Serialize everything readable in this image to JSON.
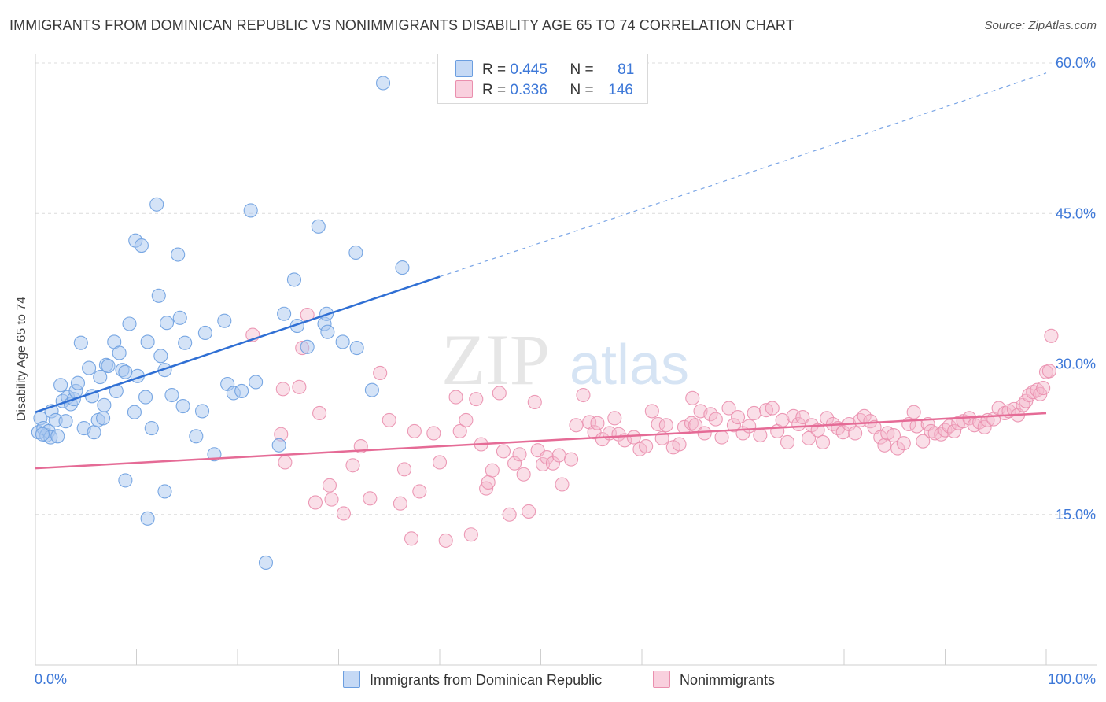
{
  "title": "IMMIGRANTS FROM DOMINICAN REPUBLIC VS NONIMMIGRANTS DISABILITY AGE 65 TO 74 CORRELATION CHART",
  "source": "Source: ZipAtlas.com",
  "watermark": {
    "zip": "ZIP",
    "atlas": "atlas"
  },
  "legend_top": {
    "rows": [
      {
        "r_label": "R =",
        "r_value": "0.445",
        "n_label": "N =",
        "n_value": "81"
      },
      {
        "r_label": "R =",
        "r_value": "0.336",
        "n_label": "N =",
        "n_value": "146"
      }
    ]
  },
  "colors": {
    "blue_fill": "#a9c8f0",
    "blue_stroke": "#6b9ee0",
    "blue_line": "#2f6fd4",
    "pink_fill": "#f4b7cb",
    "pink_stroke": "#ea8fae",
    "pink_line": "#e56b96",
    "tick_label": "#3d78d8",
    "grid": "#dcdcdc"
  },
  "chart_data": {
    "type": "scatter",
    "title": "IMMIGRANTS FROM DOMINICAN REPUBLIC VS NONIMMIGRANTS DISABILITY AGE 65 TO 74 CORRELATION CHART",
    "xlabel": "",
    "ylabel": "Disability Age 65 to 74",
    "xlim": [
      0,
      100
    ],
    "ylim": [
      0,
      63
    ],
    "x_tick_labels": [
      "0.0%",
      "100.0%"
    ],
    "y_ticks": [
      15,
      30,
      45,
      60
    ],
    "y_tick_labels": [
      "15.0%",
      "30.0%",
      "45.0%",
      "60.0%"
    ],
    "grid": true,
    "legend_position": "bottom",
    "series": [
      {
        "name": "Immigrants from Dominican Republic",
        "r": 0.445,
        "n": 81,
        "trend": {
          "x0": 0,
          "y0": 25.2,
          "x1": 40,
          "y1": 38.7,
          "dashed_to_x": 100,
          "dashed_to_y": 59.0
        },
        "points": [
          [
            0.3,
            23.2
          ],
          [
            0.5,
            24.6
          ],
          [
            0.8,
            23.6
          ],
          [
            1.1,
            22.9
          ],
          [
            1.3,
            23.3
          ],
          [
            1.5,
            22.7
          ],
          [
            1.6,
            25.3
          ],
          [
            2.0,
            24.4
          ],
          [
            2.2,
            22.8
          ],
          [
            2.5,
            27.9
          ],
          [
            2.7,
            26.3
          ],
          [
            3.0,
            24.3
          ],
          [
            3.2,
            26.7
          ],
          [
            3.5,
            26.0
          ],
          [
            3.8,
            26.5
          ],
          [
            4.0,
            27.3
          ],
          [
            4.2,
            28.1
          ],
          [
            4.5,
            32.1
          ],
          [
            4.8,
            23.6
          ],
          [
            5.3,
            29.6
          ],
          [
            5.6,
            26.8
          ],
          [
            5.8,
            23.2
          ],
          [
            6.2,
            24.4
          ],
          [
            6.4,
            28.7
          ],
          [
            6.7,
            24.6
          ],
          [
            6.8,
            25.9
          ],
          [
            7.0,
            29.9
          ],
          [
            7.2,
            29.8
          ],
          [
            7.8,
            32.2
          ],
          [
            8.0,
            27.3
          ],
          [
            8.3,
            31.1
          ],
          [
            8.6,
            29.4
          ],
          [
            8.9,
            29.2
          ],
          [
            9.3,
            34.0
          ],
          [
            9.8,
            25.2
          ],
          [
            9.9,
            42.3
          ],
          [
            10.1,
            28.8
          ],
          [
            10.5,
            41.8
          ],
          [
            10.9,
            26.7
          ],
          [
            11.1,
            32.2
          ],
          [
            11.5,
            23.6
          ],
          [
            12.0,
            45.9
          ],
          [
            12.2,
            36.8
          ],
          [
            12.4,
            30.8
          ],
          [
            12.8,
            29.4
          ],
          [
            13.0,
            34.1
          ],
          [
            13.5,
            26.9
          ],
          [
            14.1,
            40.9
          ],
          [
            14.3,
            34.6
          ],
          [
            14.8,
            32.1
          ],
          [
            14.6,
            25.8
          ],
          [
            15.9,
            22.8
          ],
          [
            16.5,
            25.3
          ],
          [
            16.8,
            33.1
          ],
          [
            17.7,
            21.0
          ],
          [
            18.7,
            34.3
          ],
          [
            19.0,
            28.0
          ],
          [
            19.6,
            27.1
          ],
          [
            20.4,
            27.3
          ],
          [
            21.3,
            45.3
          ],
          [
            21.8,
            28.2
          ],
          [
            22.8,
            10.2
          ],
          [
            24.1,
            21.9
          ],
          [
            24.6,
            35.0
          ],
          [
            25.6,
            38.4
          ],
          [
            25.9,
            33.8
          ],
          [
            26.9,
            31.7
          ],
          [
            28.0,
            43.7
          ],
          [
            28.6,
            34.0
          ],
          [
            28.8,
            35.0
          ],
          [
            28.9,
            33.2
          ],
          [
            30.4,
            32.2
          ],
          [
            31.7,
            41.1
          ],
          [
            31.8,
            31.6
          ],
          [
            33.3,
            27.4
          ],
          [
            34.4,
            58.0
          ],
          [
            36.3,
            39.6
          ],
          [
            11.1,
            14.6
          ],
          [
            8.9,
            18.4
          ],
          [
            12.8,
            17.3
          ],
          [
            0.7,
            23.0
          ]
        ]
      },
      {
        "name": "Nonimmigrants",
        "r": 0.336,
        "n": 146,
        "trend": {
          "x0": 0,
          "y0": 19.6,
          "x1": 100,
          "y1": 25.1
        },
        "points": [
          [
            21.5,
            32.9
          ],
          [
            24.3,
            23.0
          ],
          [
            24.7,
            20.2
          ],
          [
            24.5,
            27.5
          ],
          [
            26.1,
            27.7
          ],
          [
            26.4,
            31.6
          ],
          [
            26.9,
            34.9
          ],
          [
            27.7,
            16.2
          ],
          [
            28.1,
            25.1
          ],
          [
            29.3,
            16.5
          ],
          [
            29.1,
            17.9
          ],
          [
            30.5,
            15.1
          ],
          [
            31.4,
            19.9
          ],
          [
            32.2,
            21.8
          ],
          [
            33.1,
            16.6
          ],
          [
            34.1,
            29.1
          ],
          [
            35.0,
            24.4
          ],
          [
            36.1,
            16.1
          ],
          [
            36.5,
            19.5
          ],
          [
            37.2,
            12.6
          ],
          [
            37.5,
            23.3
          ],
          [
            38.0,
            17.3
          ],
          [
            39.4,
            23.1
          ],
          [
            40.0,
            20.2
          ],
          [
            40.6,
            12.4
          ],
          [
            41.6,
            26.7
          ],
          [
            42.0,
            23.3
          ],
          [
            42.6,
            24.4
          ],
          [
            43.1,
            13.0
          ],
          [
            43.6,
            26.5
          ],
          [
            44.1,
            22.0
          ],
          [
            44.6,
            17.6
          ],
          [
            44.8,
            18.2
          ],
          [
            45.2,
            19.4
          ],
          [
            45.9,
            27.1
          ],
          [
            46.3,
            21.3
          ],
          [
            46.9,
            15.0
          ],
          [
            47.4,
            20.1
          ],
          [
            47.9,
            21.0
          ],
          [
            48.3,
            19.0
          ],
          [
            48.8,
            15.3
          ],
          [
            49.4,
            26.2
          ],
          [
            49.7,
            21.4
          ],
          [
            50.2,
            20.0
          ],
          [
            50.6,
            20.7
          ],
          [
            51.2,
            20.1
          ],
          [
            51.8,
            20.9
          ],
          [
            52.1,
            18.0
          ],
          [
            53.0,
            20.5
          ],
          [
            53.5,
            23.9
          ],
          [
            54.2,
            26.9
          ],
          [
            54.8,
            24.2
          ],
          [
            55.3,
            23.2
          ],
          [
            55.6,
            24.1
          ],
          [
            56.1,
            22.5
          ],
          [
            56.8,
            23.1
          ],
          [
            57.3,
            24.6
          ],
          [
            57.7,
            23.0
          ],
          [
            58.3,
            22.4
          ],
          [
            59.2,
            22.7
          ],
          [
            59.8,
            21.5
          ],
          [
            60.4,
            21.8
          ],
          [
            61.0,
            25.3
          ],
          [
            61.6,
            24.0
          ],
          [
            62.0,
            22.6
          ],
          [
            62.4,
            23.9
          ],
          [
            63.1,
            21.7
          ],
          [
            63.7,
            22.0
          ],
          [
            64.2,
            23.7
          ],
          [
            64.9,
            24.1
          ],
          [
            65.3,
            23.9
          ],
          [
            65.8,
            25.3
          ],
          [
            66.2,
            23.1
          ],
          [
            66.8,
            25.0
          ],
          [
            67.3,
            24.5
          ],
          [
            67.9,
            22.7
          ],
          [
            68.6,
            25.6
          ],
          [
            69.1,
            23.9
          ],
          [
            69.5,
            24.7
          ],
          [
            70.0,
            23.1
          ],
          [
            70.6,
            23.8
          ],
          [
            71.1,
            25.1
          ],
          [
            71.7,
            22.9
          ],
          [
            72.3,
            25.4
          ],
          [
            72.9,
            25.6
          ],
          [
            73.4,
            23.3
          ],
          [
            73.9,
            24.4
          ],
          [
            74.4,
            22.2
          ],
          [
            75.0,
            24.8
          ],
          [
            75.5,
            24.0
          ],
          [
            75.9,
            24.7
          ],
          [
            76.5,
            22.6
          ],
          [
            76.8,
            23.9
          ],
          [
            77.4,
            23.4
          ],
          [
            77.9,
            22.2
          ],
          [
            78.3,
            24.6
          ],
          [
            78.9,
            24.0
          ],
          [
            79.4,
            23.6
          ],
          [
            79.9,
            23.2
          ],
          [
            80.5,
            24.0
          ],
          [
            81.1,
            23.1
          ],
          [
            81.6,
            24.4
          ],
          [
            82.0,
            24.8
          ],
          [
            82.6,
            24.3
          ],
          [
            83.0,
            23.7
          ],
          [
            83.6,
            22.7
          ],
          [
            84.0,
            21.9
          ],
          [
            84.3,
            23.1
          ],
          [
            84.9,
            22.9
          ],
          [
            85.3,
            21.6
          ],
          [
            85.9,
            22.1
          ],
          [
            86.4,
            24.0
          ],
          [
            86.9,
            25.2
          ],
          [
            87.2,
            23.8
          ],
          [
            87.8,
            22.3
          ],
          [
            88.3,
            24.0
          ],
          [
            88.6,
            23.3
          ],
          [
            89.0,
            23.1
          ],
          [
            89.6,
            23.0
          ],
          [
            90.0,
            23.4
          ],
          [
            90.4,
            23.8
          ],
          [
            90.9,
            23.3
          ],
          [
            91.3,
            24.1
          ],
          [
            91.8,
            24.3
          ],
          [
            92.4,
            24.6
          ],
          [
            92.9,
            23.9
          ],
          [
            93.4,
            24.2
          ],
          [
            93.9,
            23.7
          ],
          [
            94.2,
            24.4
          ],
          [
            94.8,
            24.5
          ],
          [
            95.3,
            25.6
          ],
          [
            95.9,
            25.1
          ],
          [
            96.3,
            25.3
          ],
          [
            96.8,
            25.5
          ],
          [
            97.2,
            24.9
          ],
          [
            97.7,
            25.9
          ],
          [
            98.0,
            26.3
          ],
          [
            98.3,
            26.9
          ],
          [
            98.7,
            27.2
          ],
          [
            99.1,
            27.4
          ],
          [
            99.4,
            27.0
          ],
          [
            99.7,
            27.6
          ],
          [
            100.0,
            29.2
          ],
          [
            100.3,
            29.3
          ],
          [
            100.5,
            32.8
          ],
          [
            65.0,
            26.6
          ]
        ]
      }
    ]
  },
  "bottom_legend": [
    {
      "label": "Immigrants from Dominican Republic"
    },
    {
      "label": "Nonimmigrants"
    }
  ]
}
